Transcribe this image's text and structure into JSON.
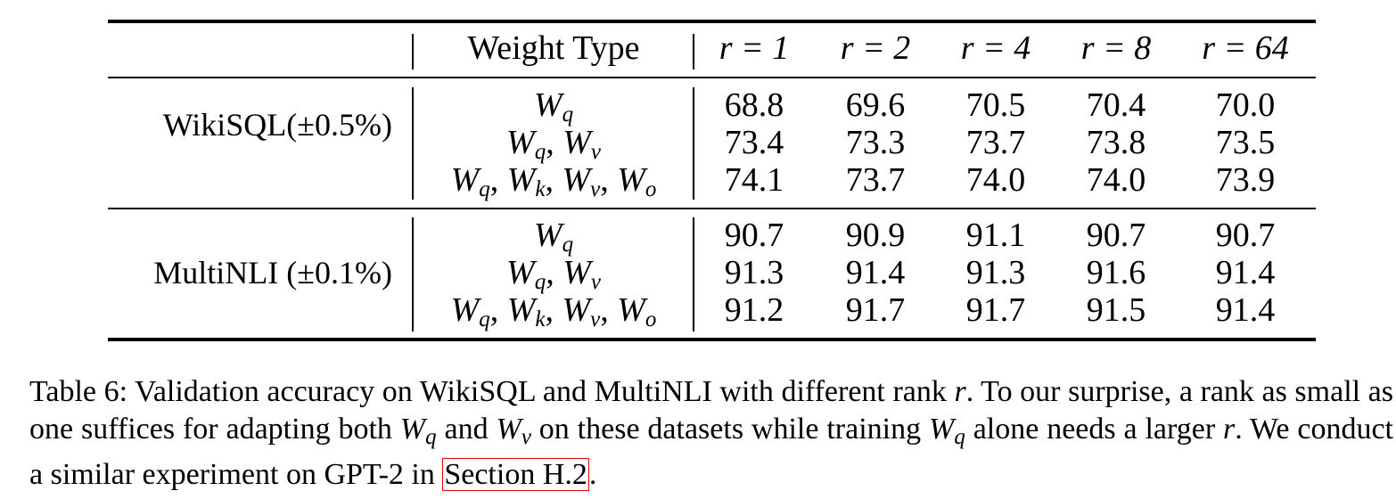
{
  "table": {
    "header": {
      "weight_type": "Weight Type",
      "ranks": [
        "r = 1",
        "r = 2",
        "r = 4",
        "r = 8",
        "r = 64"
      ]
    },
    "groups": [
      {
        "label": "WikiSQL(±0.5%)",
        "rows": [
          {
            "weights": "W_q",
            "values": [
              "68.8",
              "69.6",
              "70.5",
              "70.4",
              "70.0"
            ]
          },
          {
            "weights": "W_q, W_v",
            "values": [
              "73.4",
              "73.3",
              "73.7",
              "73.8",
              "73.5"
            ]
          },
          {
            "weights": "W_q, W_k, W_v, W_o",
            "values": [
              "74.1",
              "73.7",
              "74.0",
              "74.0",
              "73.9"
            ]
          }
        ]
      },
      {
        "label": "MultiNLI (±0.1%)",
        "rows": [
          {
            "weights": "W_q",
            "values": [
              "90.7",
              "90.9",
              "91.1",
              "90.7",
              "90.7"
            ]
          },
          {
            "weights": "W_q, W_v",
            "values": [
              "91.3",
              "91.4",
              "91.3",
              "91.6",
              "91.4"
            ]
          },
          {
            "weights": "W_q, W_k, W_v, W_o",
            "values": [
              "91.2",
              "91.7",
              "91.7",
              "91.5",
              "91.4"
            ]
          }
        ]
      }
    ]
  },
  "caption": {
    "part1": "Table 6: Validation accuracy on WikiSQL and MultiNLI with different rank ",
    "r1": "r",
    "part2": ". To our surprise, a rank as small as one suffices for adapting both ",
    "wq1": "W",
    "wq1_sub": "q",
    "part3": " and ",
    "wv": "W",
    "wv_sub": "v",
    "part4": " on these datasets while training ",
    "wq2": "W",
    "wq2_sub": "q",
    "part5": " alone needs a larger ",
    "r2": "r",
    "part6": ". We conduct a similar experiment on GPT-2 in ",
    "link": "Section H.2",
    "end": "."
  }
}
